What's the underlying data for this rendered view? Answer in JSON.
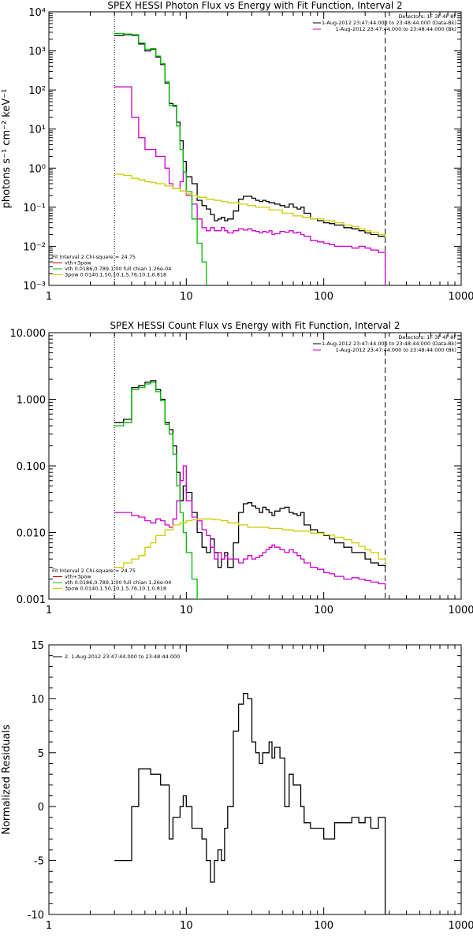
{
  "chart_data": [
    {
      "type": "line",
      "title": "SPEX HESSI Photon Flux vs Energy with Fit Function, Interval 2",
      "ylabel": "photons s⁻¹ cm⁻² keV⁻¹",
      "xlabel": "",
      "xscale": "log",
      "yscale": "log",
      "xlim": [
        1,
        1000
      ],
      "ylim": [
        0.001,
        10000
      ],
      "xticks": [
        "1",
        "10",
        "100",
        "1000"
      ],
      "yticks": [
        "10⁻³",
        "10⁻²",
        "10⁻¹",
        "10⁰",
        "10¹",
        "10²",
        "10³",
        "10⁴"
      ],
      "vlines": [
        {
          "x": 3,
          "style": "dotted"
        },
        {
          "x": 280,
          "style": "dashed"
        }
      ],
      "legend_right": [
        {
          "text": "Detectors: 1F 3F 4F 8F",
          "color": "#000000"
        },
        {
          "text": "1-Aug-2012 23:47:44.000 to 23:48:44.000 (Data-Bk)",
          "color": "#000000"
        },
        {
          "text": "1-Aug-2012 23:47:44.000 to 23:48:44.000 (Bk)",
          "color": "#cc00cc"
        }
      ],
      "legend_left": [
        {
          "text": "Fit Interval  2   Chi-square = 24.75",
          "color": "#000000"
        },
        {
          "text": "vth+3pow",
          "color": "#cc0000"
        },
        {
          "text": "vth 0.0186,0.789,1.00  full chian 1.26e-04",
          "color": "#00bb00"
        },
        {
          "text": "3pow 0.0140,1.50,10.1,5.76,10.1,0.818",
          "color": "#cccc00"
        }
      ],
      "series": [
        {
          "name": "Data-Bk",
          "color": "#000000",
          "step": true,
          "x": [
            3,
            3.5,
            4,
            4.5,
            5,
            5.5,
            6,
            6.5,
            7,
            7.5,
            8,
            8.5,
            9,
            9.5,
            10,
            11,
            12,
            13,
            14,
            15,
            16,
            17,
            18,
            19,
            20,
            22,
            24,
            26,
            28,
            30,
            32,
            34,
            36,
            38,
            40,
            42,
            44,
            48,
            52,
            56,
            60,
            64,
            68,
            72,
            80,
            90,
            100,
            110,
            120,
            140,
            160,
            180,
            200,
            220,
            250,
            280
          ],
          "y": [
            2500,
            2600,
            2500,
            1500,
            1000,
            1100,
            700,
            450,
            150,
            45,
            40,
            15,
            5,
            1.5,
            0.6,
            0.4,
            0.15,
            0.11,
            0.09,
            0.065,
            0.045,
            0.05,
            0.055,
            0.045,
            0.05,
            0.08,
            0.16,
            0.19,
            0.19,
            0.17,
            0.15,
            0.14,
            0.15,
            0.14,
            0.13,
            0.13,
            0.12,
            0.11,
            0.1,
            0.12,
            0.1,
            0.09,
            0.1,
            0.07,
            0.05,
            0.045,
            0.04,
            0.038,
            0.035,
            0.03,
            0.028,
            0.025,
            0.022,
            0.02,
            0.018,
            0.018
          ]
        },
        {
          "name": "Bk",
          "color": "#cc00cc",
          "step": true,
          "x": [
            3,
            3.5,
            4,
            4.5,
            5,
            5.5,
            6,
            6.5,
            7,
            7.5,
            8,
            8.5,
            9,
            9.5,
            10,
            11,
            12,
            13,
            14,
            15,
            16,
            17,
            18,
            19,
            20,
            22,
            24,
            26,
            28,
            30,
            32,
            34,
            36,
            38,
            40,
            42,
            44,
            48,
            52,
            56,
            60,
            64,
            68,
            72,
            80,
            90,
            100,
            110,
            120,
            140,
            160,
            180,
            200,
            220,
            250,
            280
          ],
          "y": [
            120,
            120,
            20,
            6,
            3,
            3,
            2,
            2,
            1,
            0.4,
            0.3,
            0.3,
            0.45,
            0.8,
            0.2,
            0.12,
            0.05,
            0.03,
            0.025,
            0.03,
            0.025,
            0.025,
            0.03,
            0.025,
            0.022,
            0.025,
            0.028,
            0.026,
            0.028,
            0.025,
            0.024,
            0.022,
            0.024,
            0.023,
            0.025,
            0.02,
            0.021,
            0.024,
            0.023,
            0.025,
            0.022,
            0.023,
            0.02,
            0.018,
            0.014,
            0.013,
            0.012,
            0.011,
            0.01,
            0.01,
            0.009,
            0.01,
            0.009,
            0.008,
            0.007,
            0.001
          ]
        },
        {
          "name": "vth",
          "color": "#00bb00",
          "step": true,
          "x": [
            3,
            3.5,
            4,
            4.5,
            5,
            5.5,
            6,
            6.5,
            7,
            7.5,
            8,
            8.5,
            9,
            9.5,
            10,
            11,
            12,
            13,
            14
          ],
          "y": [
            2800,
            2700,
            2600,
            1600,
            1100,
            1150,
            740,
            470,
            160,
            40,
            38,
            12,
            3,
            0.8,
            0.25,
            0.05,
            0.012,
            0.004,
            0.001
          ]
        },
        {
          "name": "3pow",
          "color": "#cccc00",
          "step": true,
          "x": [
            3,
            3.5,
            4,
            4.5,
            5,
            5.5,
            6,
            7,
            8,
            9,
            10,
            11,
            12,
            14,
            16,
            18,
            20,
            24,
            28,
            32,
            40,
            50,
            60,
            70,
            80,
            100,
            120,
            140,
            160,
            180,
            200,
            220,
            250,
            280
          ],
          "y": [
            0.7,
            0.65,
            0.55,
            0.5,
            0.45,
            0.43,
            0.4,
            0.35,
            0.3,
            0.26,
            0.22,
            0.2,
            0.18,
            0.16,
            0.15,
            0.14,
            0.13,
            0.12,
            0.11,
            0.1,
            0.085,
            0.07,
            0.06,
            0.055,
            0.05,
            0.045,
            0.04,
            0.035,
            0.032,
            0.028,
            0.025,
            0.023,
            0.02,
            0.018
          ]
        }
      ]
    },
    {
      "type": "line",
      "title": "SPEX HESSI Count Flux vs Energy with Fit Function, Interval 2",
      "ylabel": "",
      "xlabel": "",
      "xscale": "log",
      "yscale": "log",
      "xlim": [
        1,
        1000
      ],
      "ylim": [
        0.001,
        10
      ],
      "xticks": [
        "1",
        "10",
        "100",
        "1000"
      ],
      "yticks": [
        "0.001",
        "0.010",
        "0.100",
        "1.000",
        "10.000"
      ],
      "vlines": [
        {
          "x": 3,
          "style": "dotted"
        },
        {
          "x": 280,
          "style": "dashed"
        }
      ],
      "legend_right": [
        {
          "text": "Detectors: 1F 3F 4F 8F",
          "color": "#000000"
        },
        {
          "text": "1-Aug-2012 23:47:44.000 to 23:48:44.000 (Data-Bk)",
          "color": "#000000"
        },
        {
          "text": "1-Aug-2012 23:47:44.000 to 23:48:44.000 (Bk)",
          "color": "#cc00cc"
        }
      ],
      "legend_left": [
        {
          "text": "Fit Interval  2   Chi-square = 24.75",
          "color": "#000000"
        },
        {
          "text": "vth+3pow",
          "color": "#cc0000"
        },
        {
          "text": "vth 0.0186,0.789,1.00  full chian 1.26e-04",
          "color": "#00bb00"
        },
        {
          "text": "3pow 0.0140,1.50,10.1,5.76,10.1,0.818",
          "color": "#cccc00"
        }
      ],
      "series": [
        {
          "name": "Data-Bk",
          "color": "#000000",
          "step": true,
          "x": [
            3,
            3.5,
            4,
            4.5,
            5,
            5.5,
            6,
            6.5,
            7,
            7.5,
            8,
            8.5,
            9,
            9.5,
            10,
            11,
            12,
            13,
            14,
            15,
            16,
            17,
            18,
            19,
            20,
            22,
            24,
            26,
            28,
            30,
            32,
            34,
            36,
            38,
            40,
            42,
            44,
            48,
            52,
            56,
            60,
            64,
            68,
            72,
            80,
            90,
            100,
            110,
            120,
            140,
            160,
            180,
            200,
            220,
            250,
            280
          ],
          "y": [
            0.45,
            0.5,
            1.5,
            1.6,
            1.8,
            1.9,
            1.4,
            1.0,
            0.45,
            0.35,
            0.2,
            0.08,
            0.03,
            0.05,
            0.04,
            0.02,
            0.01,
            0.006,
            0.005,
            0.008,
            0.005,
            0.003,
            0.004,
            0.005,
            0.003,
            0.007,
            0.02,
            0.027,
            0.028,
            0.025,
            0.023,
            0.02,
            0.024,
            0.022,
            0.02,
            0.018,
            0.021,
            0.023,
            0.024,
            0.02,
            0.019,
            0.018,
            0.02,
            0.013,
            0.011,
            0.01,
            0.009,
            0.008,
            0.007,
            0.006,
            0.005,
            0.005,
            0.004,
            0.0035,
            0.0032,
            0.003
          ]
        },
        {
          "name": "Bk",
          "color": "#cc00cc",
          "step": true,
          "x": [
            3,
            3.5,
            4,
            4.5,
            5,
            5.5,
            6,
            6.5,
            7,
            7.5,
            8,
            8.5,
            9,
            9.5,
            10,
            11,
            12,
            13,
            14,
            15,
            16,
            17,
            18,
            19,
            20,
            22,
            24,
            26,
            28,
            30,
            32,
            34,
            36,
            38,
            40,
            42,
            44,
            48,
            52,
            56,
            60,
            64,
            68,
            72,
            80,
            90,
            100,
            110,
            120,
            140,
            160,
            180,
            200,
            220,
            250,
            280
          ],
          "y": [
            0.02,
            0.02,
            0.018,
            0.017,
            0.015,
            0.014,
            0.016,
            0.015,
            0.013,
            0.012,
            0.016,
            0.03,
            0.06,
            0.1,
            0.03,
            0.017,
            0.015,
            0.011,
            0.009,
            0.006,
            0.004,
            0.005,
            0.004,
            0.0045,
            0.004,
            0.004,
            0.0035,
            0.004,
            0.0045,
            0.004,
            0.0042,
            0.0045,
            0.005,
            0.0055,
            0.006,
            0.0065,
            0.006,
            0.0055,
            0.005,
            0.0055,
            0.005,
            0.0045,
            0.004,
            0.0035,
            0.003,
            0.0028,
            0.0025,
            0.0024,
            0.0022,
            0.002,
            0.0021,
            0.002,
            0.0019,
            0.0018,
            0.0017,
            0.0015
          ]
        },
        {
          "name": "vth",
          "color": "#00bb00",
          "step": true,
          "x": [
            3,
            3.5,
            4,
            4.5,
            5,
            5.5,
            6,
            6.5,
            7,
            7.5,
            8,
            8.5,
            9,
            9.5,
            10,
            11,
            12,
            13
          ],
          "y": [
            0.4,
            0.45,
            1.4,
            1.5,
            1.7,
            1.8,
            1.3,
            0.95,
            0.42,
            0.3,
            0.15,
            0.05,
            0.02,
            0.01,
            0.005,
            0.002,
            0.001,
            0.001
          ]
        },
        {
          "name": "3pow",
          "color": "#cccc00",
          "step": true,
          "x": [
            3,
            3.5,
            4,
            4.5,
            5,
            5.5,
            6,
            7,
            8,
            9,
            10,
            11,
            12,
            14,
            16,
            18,
            20,
            24,
            28,
            32,
            40,
            50,
            60,
            70,
            80,
            100,
            120,
            140,
            160,
            180,
            200,
            220,
            250,
            280
          ],
          "y": [
            0.003,
            0.0035,
            0.004,
            0.0045,
            0.006,
            0.007,
            0.009,
            0.011,
            0.013,
            0.014,
            0.015,
            0.0155,
            0.016,
            0.016,
            0.0155,
            0.015,
            0.014,
            0.013,
            0.012,
            0.012,
            0.0115,
            0.011,
            0.0105,
            0.0105,
            0.0098,
            0.0092,
            0.0085,
            0.0078,
            0.007,
            0.0062,
            0.0055,
            0.005,
            0.004,
            0.0035
          ]
        }
      ]
    },
    {
      "type": "line",
      "title": "",
      "ylabel": "Normalized Residuals",
      "xlabel": "",
      "xscale": "log",
      "yscale": "linear",
      "xlim": [
        1,
        1000
      ],
      "ylim": [
        -10,
        15
      ],
      "xticks": [
        "1",
        "10",
        "100",
        "1000"
      ],
      "yticks": [
        "-10",
        "-5",
        "0",
        "5",
        "10",
        "15"
      ],
      "legend_left": [
        {
          "text": "2. 1-Aug-2012 23:47:44.000 to 23:48:44.000",
          "color": "#000000"
        }
      ],
      "series": [
        {
          "name": "",
          "color": "#000000",
          "step": true,
          "x": [
            3,
            3.5,
            4,
            4.5,
            5,
            5.5,
            6,
            6.5,
            7,
            7.5,
            8,
            8.5,
            9,
            9.5,
            10,
            11,
            12,
            13,
            14,
            15,
            16,
            17,
            18,
            19,
            20,
            22,
            24,
            26,
            28,
            30,
            32,
            34,
            36,
            38,
            40,
            42,
            44,
            48,
            52,
            56,
            60,
            64,
            68,
            72,
            80,
            90,
            100,
            110,
            120,
            140,
            160,
            180,
            200,
            220,
            250,
            280
          ],
          "y": [
            -5,
            -5,
            0,
            3.5,
            3.5,
            3,
            3,
            2,
            2,
            -3,
            -1,
            -1,
            0,
            1,
            0,
            -2,
            -2,
            -3,
            -5,
            -7,
            -5,
            -4,
            -5,
            -2,
            0,
            7,
            9.5,
            10.5,
            10,
            6,
            5,
            4,
            5,
            5,
            6,
            4.5,
            5.5,
            4.5,
            0,
            3,
            2,
            2,
            0,
            -1.5,
            -2,
            -2,
            -3,
            -3,
            -1.5,
            -1.5,
            -1,
            -1.5,
            -1,
            -2,
            -1,
            -10
          ]
        }
      ]
    }
  ]
}
